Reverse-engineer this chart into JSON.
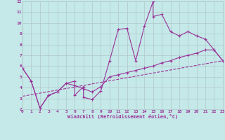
{
  "xlabel": "Windchill (Refroidissement éolien,°C)",
  "xlim": [
    0,
    23
  ],
  "ylim": [
    2,
    12
  ],
  "xticks": [
    0,
    1,
    2,
    3,
    4,
    5,
    6,
    7,
    8,
    9,
    10,
    11,
    12,
    13,
    14,
    15,
    16,
    17,
    18,
    19,
    20,
    21,
    22,
    23
  ],
  "yticks": [
    2,
    3,
    4,
    5,
    6,
    7,
    8,
    9,
    10,
    11,
    12
  ],
  "background_color": "#c5e8e8",
  "grid_color": "#b0c8c8",
  "line_color": "#993399",
  "line1_x": [
    0,
    1,
    2,
    3,
    4,
    5,
    6,
    6,
    7,
    7,
    8,
    9,
    10,
    11,
    12,
    13,
    14,
    15,
    15,
    16,
    17,
    18,
    19,
    20,
    21,
    22,
    23
  ],
  "line1_y": [
    5.8,
    4.6,
    2.1,
    3.3,
    3.6,
    4.4,
    4.6,
    3.3,
    4.1,
    3.1,
    2.9,
    3.7,
    6.5,
    9.4,
    9.5,
    6.5,
    9.7,
    12.0,
    10.6,
    10.8,
    9.2,
    8.8,
    9.2,
    8.8,
    8.5,
    7.5,
    6.5
  ],
  "line2_x": [
    0,
    1,
    2,
    3,
    4,
    5,
    6,
    7,
    8,
    9,
    10,
    11,
    12,
    13,
    14,
    15,
    16,
    17,
    18,
    19,
    20,
    21,
    22,
    23
  ],
  "line2_y": [
    5.8,
    4.6,
    2.1,
    3.3,
    3.6,
    4.4,
    4.2,
    3.9,
    3.6,
    4.1,
    5.0,
    5.2,
    5.4,
    5.6,
    5.8,
    6.0,
    6.3,
    6.5,
    6.8,
    7.0,
    7.2,
    7.5,
    7.5,
    6.5
  ],
  "line3_x": [
    0,
    23
  ],
  "line3_y": [
    3.2,
    6.5
  ]
}
